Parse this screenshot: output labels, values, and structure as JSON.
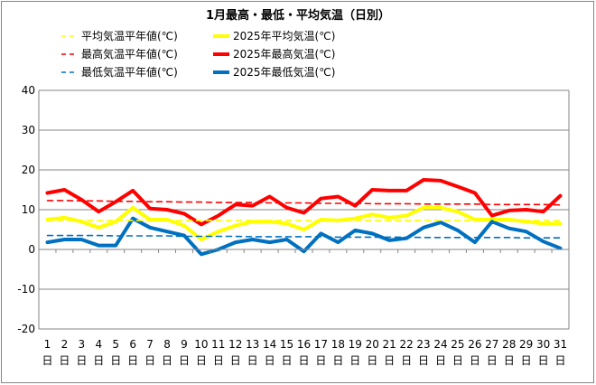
{
  "chart_data": {
    "type": "line",
    "title": "1月最高・最低・平均気温（日別）",
    "xlabel": "",
    "ylabel": "",
    "ylim": [
      -20,
      40
    ],
    "yticks": [
      -20,
      -10,
      0,
      10,
      20,
      30,
      40
    ],
    "grid": true,
    "day_suffix": "日",
    "categories": [
      "1",
      "2",
      "3",
      "4",
      "5",
      "6",
      "7",
      "8",
      "9",
      "10",
      "11",
      "12",
      "13",
      "14",
      "15",
      "16",
      "17",
      "18",
      "19",
      "20",
      "21",
      "22",
      "23",
      "24",
      "25",
      "26",
      "27",
      "28",
      "29",
      "30",
      "31"
    ],
    "series": [
      {
        "name": "平均気温平年値(℃)",
        "color": "#ffff00",
        "style": "dashed",
        "values": [
          7.3,
          7.3,
          7.3,
          7.3,
          7.3,
          7.3,
          7.3,
          7.3,
          7.3,
          7.3,
          7.3,
          7.3,
          7.3,
          7.3,
          7.3,
          7.3,
          7.3,
          7.3,
          7.3,
          7.3,
          7.3,
          7.3,
          7.3,
          7.3,
          7.3,
          7.3,
          7.3,
          7.3,
          7.3,
          7.3,
          7.3
        ]
      },
      {
        "name": "2025年平均気温(℃)",
        "color": "#ffff00",
        "style": "solid",
        "values": [
          7.5,
          8.0,
          7.0,
          5.5,
          7.0,
          10.5,
          7.5,
          7.5,
          6.0,
          2.5,
          4.5,
          6.0,
          7.0,
          7.0,
          6.5,
          5.0,
          7.5,
          7.3,
          7.8,
          8.8,
          8.0,
          8.5,
          10.5,
          10.5,
          9.5,
          7.5,
          7.5,
          7.5,
          7.0,
          6.5,
          6.5
        ]
      },
      {
        "name": "最高気温平年値(℃)",
        "color": "#ff0000",
        "style": "dashed",
        "values": [
          12.3,
          12.3,
          12.2,
          12.2,
          12.1,
          12.1,
          12.0,
          12.0,
          11.9,
          11.9,
          11.8,
          11.8,
          11.8,
          11.7,
          11.7,
          11.7,
          11.6,
          11.6,
          11.6,
          11.5,
          11.5,
          11.5,
          11.4,
          11.4,
          11.4,
          11.4,
          11.3,
          11.3,
          11.3,
          11.3,
          11.2
        ]
      },
      {
        "name": "2025年最高気温(℃)",
        "color": "#ff0000",
        "style": "solid",
        "values": [
          14.2,
          15.0,
          12.5,
          9.5,
          12.0,
          14.8,
          10.3,
          10.0,
          9.0,
          6.3,
          8.5,
          11.3,
          11.0,
          13.3,
          10.5,
          9.2,
          12.8,
          13.3,
          11.0,
          15.0,
          14.8,
          14.8,
          17.5,
          17.3,
          15.8,
          14.2,
          8.5,
          9.8,
          10.0,
          9.5,
          13.5
        ]
      },
      {
        "name": "最低気温平年値(℃)",
        "color": "#0070c0",
        "style": "dashed",
        "values": [
          3.5,
          3.5,
          3.5,
          3.5,
          3.4,
          3.4,
          3.4,
          3.4,
          3.3,
          3.3,
          3.3,
          3.3,
          3.2,
          3.2,
          3.2,
          3.2,
          3.2,
          3.1,
          3.1,
          3.1,
          3.1,
          3.1,
          3.0,
          3.0,
          3.0,
          3.0,
          3.0,
          3.0,
          2.9,
          2.9,
          2.9
        ]
      },
      {
        "name": "2025年最低気温(℃)",
        "color": "#0070c0",
        "style": "solid",
        "values": [
          1.8,
          2.5,
          2.5,
          1.0,
          1.0,
          7.8,
          5.5,
          4.5,
          3.5,
          -1.2,
          0.0,
          1.8,
          2.5,
          1.8,
          2.5,
          -0.5,
          4.0,
          1.8,
          4.8,
          4.0,
          2.3,
          2.8,
          5.5,
          6.8,
          4.8,
          1.8,
          7.0,
          5.3,
          4.5,
          2.0,
          0.3
        ]
      }
    ],
    "legend": [
      {
        "label": "平均気温平年値(℃)",
        "color": "#ffff00",
        "style": "dashed"
      },
      {
        "label": "2025年平均気温(℃)",
        "color": "#ffff00",
        "style": "solid"
      },
      {
        "label": "最高気温平年値(℃)",
        "color": "#ff0000",
        "style": "dashed"
      },
      {
        "label": "2025年最高気温(℃)",
        "color": "#ff0000",
        "style": "solid"
      },
      {
        "label": "最低気温平年値(℃)",
        "color": "#0070c0",
        "style": "dashed"
      },
      {
        "label": "2025年最低気温(℃)",
        "color": "#0070c0",
        "style": "solid"
      }
    ],
    "legend_placement": "top"
  }
}
